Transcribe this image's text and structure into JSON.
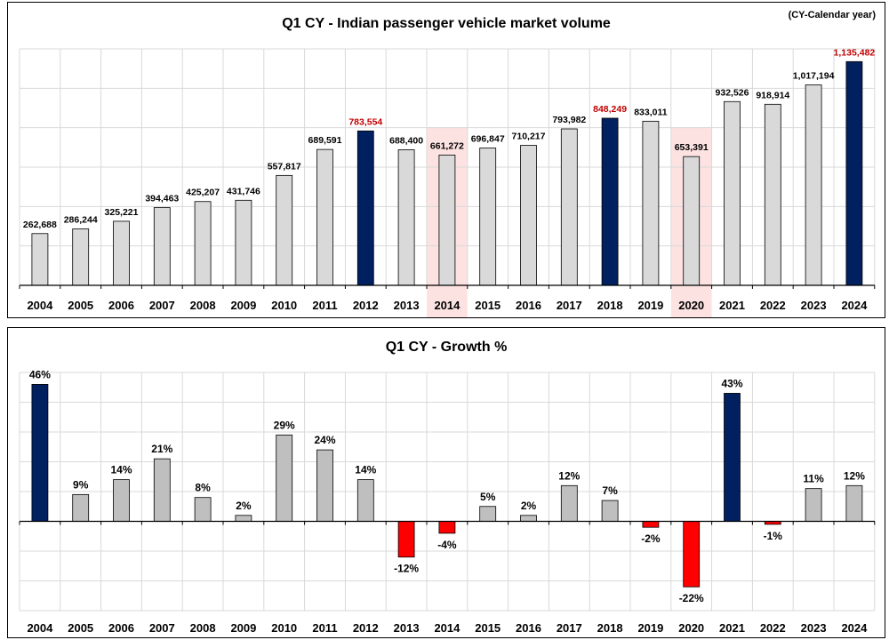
{
  "chart_data": [
    {
      "type": "bar",
      "title": "Q1 CY - Indian passenger vehicle market volume",
      "note": "(CY-Calendar year)",
      "categories": [
        "2004",
        "2005",
        "2006",
        "2007",
        "2008",
        "2009",
        "2010",
        "2011",
        "2012",
        "2013",
        "2014",
        "2015",
        "2016",
        "2017",
        "2018",
        "2019",
        "2020",
        "2021",
        "2022",
        "2023",
        "2024"
      ],
      "values": [
        262688,
        286244,
        325221,
        394463,
        425207,
        431746,
        557817,
        689591,
        783554,
        688400,
        661272,
        696847,
        710217,
        793982,
        848249,
        833011,
        653391,
        932526,
        918914,
        1017194,
        1135482
      ],
      "labels": [
        "262,688",
        "286,244",
        "325,221",
        "394,463",
        "425,207",
        "431,746",
        "557,817",
        "689,591",
        "783,554",
        "688,400",
        "661,272",
        "696,847",
        "710,217",
        "793,982",
        "848,249",
        "833,011",
        "653,391",
        "932,526",
        "918,914",
        "1,017,194",
        "1,135,482"
      ],
      "highlight_years": [
        "2012",
        "2018",
        "2024"
      ],
      "shaded_years": [
        "2014",
        "2020"
      ],
      "ylim": [
        0,
        1200000
      ],
      "grid": true,
      "colors": {
        "bar": "#d9d9d9",
        "highlight_bar": "#002060",
        "highlight_label": "#c00000",
        "label": "#000000",
        "shade": "#fde2e2"
      }
    },
    {
      "type": "bar",
      "title": "Q1 CY - Growth %",
      "categories": [
        "2004",
        "2005",
        "2006",
        "2007",
        "2008",
        "2009",
        "2010",
        "2011",
        "2012",
        "2013",
        "2014",
        "2015",
        "2016",
        "2017",
        "2018",
        "2019",
        "2020",
        "2021",
        "2022",
        "2023",
        "2024"
      ],
      "values": [
        46,
        9,
        14,
        21,
        8,
        2,
        29,
        24,
        14,
        -12,
        -4,
        5,
        2,
        12,
        7,
        -2,
        -22,
        43,
        -1,
        11,
        12
      ],
      "labels": [
        "46%",
        "9%",
        "14%",
        "21%",
        "8%",
        "2%",
        "29%",
        "24%",
        "14%",
        "-12%",
        "-4%",
        "5%",
        "2%",
        "12%",
        "7%",
        "-2%",
        "-22%",
        "43%",
        "-1%",
        "11%",
        "12%"
      ],
      "highlight_years": [
        "2004",
        "2021"
      ],
      "ylim": [
        -30,
        50
      ],
      "grid": true,
      "colors": {
        "bar": "#bfbfbf",
        "highlight_bar": "#002060",
        "negative_bar": "#ff0000",
        "label": "#000000"
      }
    }
  ]
}
